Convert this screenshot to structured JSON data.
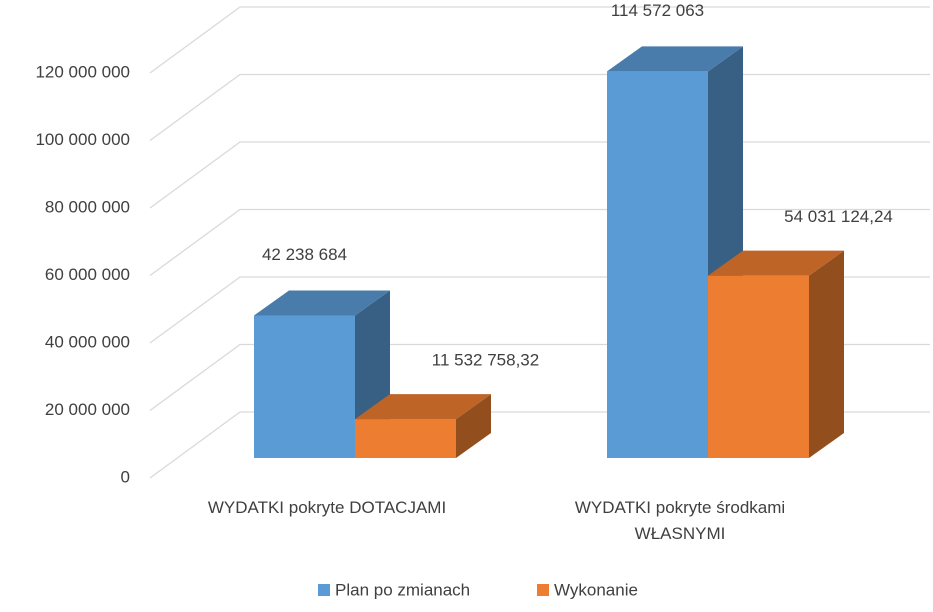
{
  "chart_data": {
    "type": "bar3d",
    "categories": [
      "WYDATKI pokryte DOTACJAMI",
      "WYDATKI pokryte środkami WŁASNYMI"
    ],
    "series": [
      {
        "name": "Plan po zmianach",
        "color": "#5b9bd5",
        "values": [
          42238684,
          114572063
        ],
        "value_labels": [
          "42 238 684",
          "114 572 063"
        ]
      },
      {
        "name": "Wykonanie",
        "color": "#ed7d31",
        "values": [
          11532758.32,
          54031124.24
        ],
        "value_labels": [
          "11 532 758,32",
          "54 031 124,24"
        ]
      }
    ],
    "ylim": [
      0,
      120000000
    ],
    "yticks": [
      0,
      {
        "value": 20000000,
        "label": "20 000 000"
      },
      {
        "value": 40000000,
        "label": "40 000 000"
      },
      {
        "value": 60000000,
        "label": "60 000 000"
      },
      {
        "value": 80000000,
        "label": "80 000 000"
      },
      {
        "value": 100000000,
        "label": "100 000 000"
      },
      {
        "value": 120000000,
        "label": "120 000 000"
      }
    ],
    "grid": true,
    "legend": "bottom"
  }
}
